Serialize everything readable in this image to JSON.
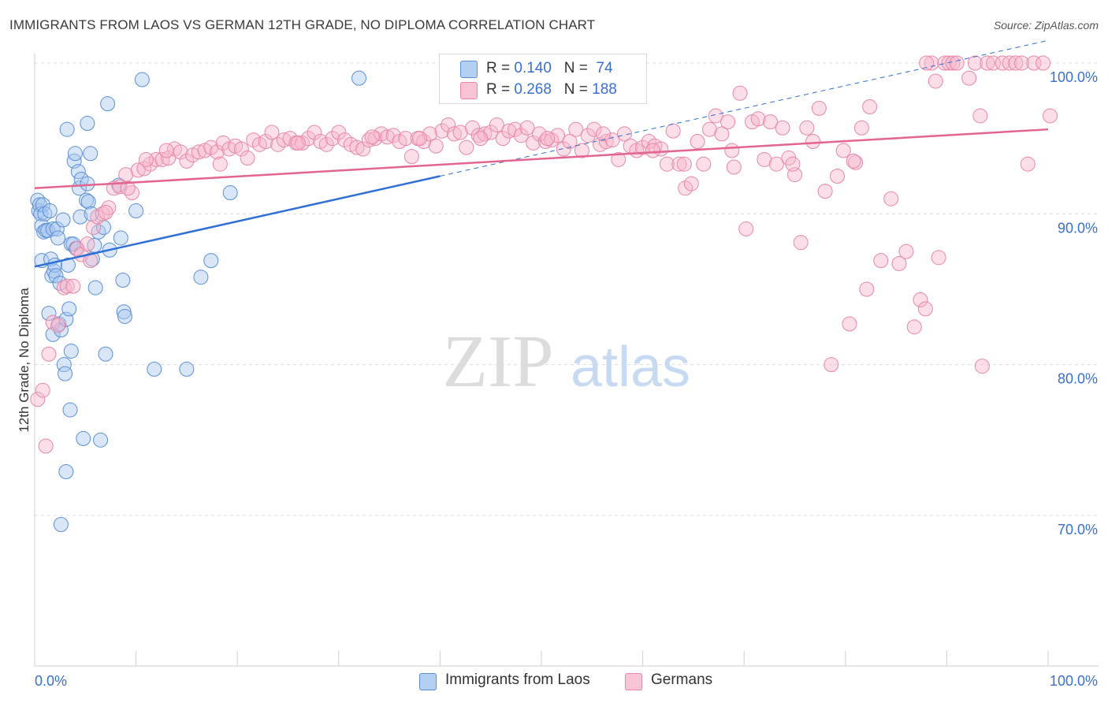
{
  "title": "IMMIGRANTS FROM LAOS VS GERMAN 12TH GRADE, NO DIPLOMA CORRELATION CHART",
  "source": "Source: ZipAtlas.com",
  "watermark": {
    "zip": "ZIP",
    "atlas": "atlas"
  },
  "legend_top": [
    {
      "r_label": "R = ",
      "r_value": "0.140",
      "n_label": "N = ",
      "n_value": "74"
    },
    {
      "r_label": "R = ",
      "r_value": "0.268",
      "n_label": "N = ",
      "n_value": "188"
    }
  ],
  "legend_bottom": [
    {
      "label": "Immigrants from Laos"
    },
    {
      "label": "Germans"
    }
  ],
  "colors": {
    "blue_fill": "#a9c8f0",
    "blue_stroke": "#5b8fd8",
    "blue_line": "#2f6fd6",
    "pink_fill": "#f6b6cb",
    "pink_stroke": "#e887a6",
    "pink_line": "#e3648f",
    "grid": "#dcdcdc",
    "axis_text": "#3a6fd0"
  },
  "chart_data": {
    "type": "scatter",
    "title": "IMMIGRANTS FROM LAOS VS GERMAN 12TH GRADE, NO DIPLOMA CORRELATION CHART",
    "xlabel": "",
    "ylabel": "12th Grade, No Diploma",
    "xlim": [
      0,
      100
    ],
    "ylim": [
      59,
      102
    ],
    "x_tick_labels": [
      "0.0%",
      "100.0%"
    ],
    "y_ticks": [
      70,
      80,
      90,
      100
    ],
    "y_tick_labels": [
      "70.0%",
      "80.0%",
      "90.0%",
      "100.0%"
    ],
    "grid": true,
    "legend_position": "top-center",
    "series": [
      {
        "name": "Immigrants from Laos",
        "color": "#a9c8f0",
        "trend": {
          "x": [
            0,
            40
          ],
          "y": [
            86.5,
            92.5
          ],
          "extended_to": [
            100,
            101.5
          ]
        },
        "points": [
          [
            0.3,
            90.9
          ],
          [
            0.4,
            90.2
          ],
          [
            0.5,
            90.6
          ],
          [
            0.6,
            90.0
          ],
          [
            0.7,
            89.2
          ],
          [
            0.7,
            86.9
          ],
          [
            0.8,
            90.6
          ],
          [
            0.9,
            88.8
          ],
          [
            1.0,
            90.0
          ],
          [
            1.1,
            88.9
          ],
          [
            1.3,
            88.9
          ],
          [
            1.4,
            83.4
          ],
          [
            1.5,
            90.2
          ],
          [
            1.6,
            87.0
          ],
          [
            1.7,
            85.9
          ],
          [
            1.8,
            89.0
          ],
          [
            1.8,
            82.0
          ],
          [
            1.9,
            86.2
          ],
          [
            2.0,
            86.6
          ],
          [
            2.1,
            85.9
          ],
          [
            2.2,
            89.0
          ],
          [
            2.3,
            88.4
          ],
          [
            2.4,
            82.7
          ],
          [
            2.5,
            85.4
          ],
          [
            2.6,
            82.3
          ],
          [
            2.8,
            89.6
          ],
          [
            2.9,
            80.0
          ],
          [
            3.0,
            79.4
          ],
          [
            3.1,
            83.0
          ],
          [
            3.1,
            72.9
          ],
          [
            3.3,
            86.6
          ],
          [
            3.4,
            83.7
          ],
          [
            3.5,
            77.0
          ],
          [
            3.6,
            88.0
          ],
          [
            3.6,
            80.9
          ],
          [
            3.8,
            88.0
          ],
          [
            3.9,
            93.5
          ],
          [
            4.0,
            94.0
          ],
          [
            4.1,
            87.7
          ],
          [
            4.3,
            92.8
          ],
          [
            4.4,
            91.7
          ],
          [
            4.5,
            89.8
          ],
          [
            4.6,
            92.3
          ],
          [
            4.8,
            75.1
          ],
          [
            5.1,
            90.9
          ],
          [
            5.2,
            96.0
          ],
          [
            5.3,
            90.8
          ],
          [
            5.5,
            94.0
          ],
          [
            5.6,
            90.0
          ],
          [
            5.7,
            87.0
          ],
          [
            5.9,
            87.9
          ],
          [
            6.0,
            85.1
          ],
          [
            6.3,
            88.8
          ],
          [
            6.5,
            75.0
          ],
          [
            6.8,
            89.1
          ],
          [
            7.0,
            80.7
          ],
          [
            7.2,
            97.3
          ],
          [
            7.4,
            87.6
          ],
          [
            8.3,
            91.9
          ],
          [
            8.5,
            88.4
          ],
          [
            8.7,
            85.6
          ],
          [
            8.8,
            83.5
          ],
          [
            8.9,
            83.2
          ],
          [
            10.0,
            90.2
          ],
          [
            10.6,
            98.9
          ],
          [
            11.8,
            79.7
          ],
          [
            15.0,
            79.7
          ],
          [
            16.4,
            85.8
          ],
          [
            17.4,
            86.9
          ],
          [
            19.3,
            91.4
          ],
          [
            32.0,
            99.0
          ],
          [
            2.6,
            69.4
          ],
          [
            3.2,
            95.6
          ],
          [
            5.2,
            92.0
          ]
        ]
      },
      {
        "name": "Germans",
        "color": "#f6b6cb",
        "trend": {
          "x": [
            0,
            100
          ],
          "y": [
            91.7,
            95.6
          ]
        },
        "points": [
          [
            0.3,
            77.7
          ],
          [
            0.8,
            78.3
          ],
          [
            1.4,
            80.7
          ],
          [
            1.8,
            82.8
          ],
          [
            2.3,
            82.6
          ],
          [
            2.9,
            85.1
          ],
          [
            3.2,
            85.2
          ],
          [
            3.8,
            85.2
          ],
          [
            4.2,
            87.7
          ],
          [
            4.6,
            87.3
          ],
          [
            5.2,
            88.0
          ],
          [
            5.8,
            89.1
          ],
          [
            6.2,
            89.8
          ],
          [
            6.7,
            90.0
          ],
          [
            7.3,
            90.4
          ],
          [
            7.8,
            91.7
          ],
          [
            8.4,
            91.8
          ],
          [
            9.0,
            92.6
          ],
          [
            9.6,
            91.4
          ],
          [
            10.2,
            92.9
          ],
          [
            10.8,
            93.0
          ],
          [
            11.4,
            93.3
          ],
          [
            12.0,
            93.6
          ],
          [
            12.6,
            93.6
          ],
          [
            13.2,
            93.7
          ],
          [
            13.8,
            94.3
          ],
          [
            14.4,
            94.1
          ],
          [
            15.0,
            93.5
          ],
          [
            15.6,
            93.9
          ],
          [
            16.2,
            94.1
          ],
          [
            16.8,
            94.2
          ],
          [
            17.4,
            94.4
          ],
          [
            18.0,
            94.1
          ],
          [
            18.6,
            94.7
          ],
          [
            19.2,
            94.3
          ],
          [
            19.8,
            94.5
          ],
          [
            20.4,
            94.3
          ],
          [
            21.0,
            93.7
          ],
          [
            21.6,
            94.9
          ],
          [
            22.2,
            94.6
          ],
          [
            22.8,
            94.8
          ],
          [
            23.4,
            95.4
          ],
          [
            24.0,
            94.6
          ],
          [
            24.6,
            94.9
          ],
          [
            25.2,
            95.0
          ],
          [
            25.8,
            94.7
          ],
          [
            26.4,
            94.7
          ],
          [
            27.0,
            95.0
          ],
          [
            27.6,
            95.4
          ],
          [
            28.2,
            94.8
          ],
          [
            28.8,
            94.6
          ],
          [
            29.4,
            95.0
          ],
          [
            30.0,
            95.4
          ],
          [
            30.6,
            94.9
          ],
          [
            31.2,
            94.6
          ],
          [
            31.8,
            94.4
          ],
          [
            32.4,
            94.3
          ],
          [
            33.0,
            94.9
          ],
          [
            33.6,
            95.0
          ],
          [
            34.2,
            95.3
          ],
          [
            34.8,
            95.1
          ],
          [
            35.4,
            95.2
          ],
          [
            36.0,
            94.8
          ],
          [
            36.6,
            95.0
          ],
          [
            37.2,
            93.8
          ],
          [
            37.8,
            95.0
          ],
          [
            38.4,
            94.8
          ],
          [
            39.0,
            95.3
          ],
          [
            39.6,
            94.5
          ],
          [
            40.2,
            95.5
          ],
          [
            40.8,
            95.9
          ],
          [
            41.4,
            95.3
          ],
          [
            42.0,
            95.4
          ],
          [
            42.6,
            94.4
          ],
          [
            43.2,
            95.7
          ],
          [
            43.8,
            95.2
          ],
          [
            44.4,
            95.3
          ],
          [
            45.0,
            95.4
          ],
          [
            45.6,
            95.9
          ],
          [
            46.2,
            95.0
          ],
          [
            46.8,
            95.5
          ],
          [
            47.4,
            95.6
          ],
          [
            48.0,
            95.2
          ],
          [
            48.6,
            95.7
          ],
          [
            49.2,
            94.7
          ],
          [
            49.8,
            95.3
          ],
          [
            50.4,
            94.8
          ],
          [
            51.0,
            94.9
          ],
          [
            51.6,
            95.2
          ],
          [
            52.2,
            94.3
          ],
          [
            52.8,
            94.8
          ],
          [
            53.4,
            95.6
          ],
          [
            54.0,
            94.2
          ],
          [
            54.6,
            95.2
          ],
          [
            55.2,
            95.6
          ],
          [
            55.8,
            94.6
          ],
          [
            56.4,
            94.8
          ],
          [
            57.0,
            94.9
          ],
          [
            57.6,
            93.6
          ],
          [
            58.2,
            95.3
          ],
          [
            58.8,
            94.5
          ],
          [
            59.4,
            94.2
          ],
          [
            60.0,
            94.4
          ],
          [
            60.6,
            94.8
          ],
          [
            61.2,
            94.5
          ],
          [
            61.8,
            94.3
          ],
          [
            62.4,
            93.3
          ],
          [
            63.0,
            95.5
          ],
          [
            63.6,
            93.3
          ],
          [
            64.2,
            91.7
          ],
          [
            64.8,
            92.0
          ],
          [
            65.4,
            94.8
          ],
          [
            66.0,
            93.3
          ],
          [
            66.6,
            95.6
          ],
          [
            67.2,
            96.5
          ],
          [
            67.8,
            95.3
          ],
          [
            68.4,
            96.1
          ],
          [
            69.0,
            93.1
          ],
          [
            69.6,
            98.0
          ],
          [
            70.2,
            89.0
          ],
          [
            70.8,
            96.1
          ],
          [
            71.4,
            96.3
          ],
          [
            72.0,
            93.6
          ],
          [
            72.6,
            96.1
          ],
          [
            73.2,
            93.3
          ],
          [
            73.8,
            95.7
          ],
          [
            74.4,
            93.7
          ],
          [
            75.0,
            92.6
          ],
          [
            75.6,
            88.1
          ],
          [
            76.2,
            95.7
          ],
          [
            76.8,
            94.8
          ],
          [
            77.4,
            97.0
          ],
          [
            78.0,
            91.5
          ],
          [
            78.6,
            80.0
          ],
          [
            79.2,
            92.5
          ],
          [
            79.8,
            94.2
          ],
          [
            80.4,
            82.7
          ],
          [
            81.0,
            93.4
          ],
          [
            81.6,
            95.7
          ],
          [
            82.1,
            85.0
          ],
          [
            82.4,
            97.1
          ],
          [
            83.5,
            86.9
          ],
          [
            84.5,
            91.0
          ],
          [
            85.3,
            86.7
          ],
          [
            86.0,
            87.5
          ],
          [
            86.8,
            82.5
          ],
          [
            87.4,
            84.3
          ],
          [
            87.9,
            83.7
          ],
          [
            88.5,
            100.0
          ],
          [
            88.9,
            98.8
          ],
          [
            89.2,
            87.1
          ],
          [
            89.8,
            100.0
          ],
          [
            90.2,
            100.0
          ],
          [
            90.6,
            100.0
          ],
          [
            91.0,
            100.0
          ],
          [
            92.2,
            99.0
          ],
          [
            92.8,
            100.0
          ],
          [
            93.3,
            96.5
          ],
          [
            93.5,
            79.9
          ],
          [
            94.0,
            100.0
          ],
          [
            94.6,
            100.0
          ],
          [
            95.5,
            100.0
          ],
          [
            96.2,
            100.0
          ],
          [
            96.8,
            100.0
          ],
          [
            97.4,
            100.0
          ],
          [
            98.0,
            93.3
          ],
          [
            98.6,
            100.0
          ],
          [
            99.5,
            100.0
          ],
          [
            100.2,
            96.5
          ],
          [
            5.5,
            86.9
          ],
          [
            7.0,
            90.1
          ],
          [
            9.2,
            91.7
          ],
          [
            11.0,
            93.6
          ],
          [
            13.0,
            94.2
          ],
          [
            18.3,
            93.3
          ],
          [
            26.0,
            94.7
          ],
          [
            33.3,
            95.1
          ],
          [
            38.0,
            95.0
          ],
          [
            44.0,
            95.0
          ],
          [
            50.6,
            95.0
          ],
          [
            56.1,
            95.3
          ],
          [
            61.0,
            94.2
          ],
          [
            1.1,
            74.6
          ],
          [
            64.1,
            93.3
          ],
          [
            68.8,
            94.2
          ],
          [
            74.8,
            93.3
          ],
          [
            80.8,
            93.5
          ],
          [
            88.0,
            100.0
          ]
        ]
      }
    ]
  }
}
